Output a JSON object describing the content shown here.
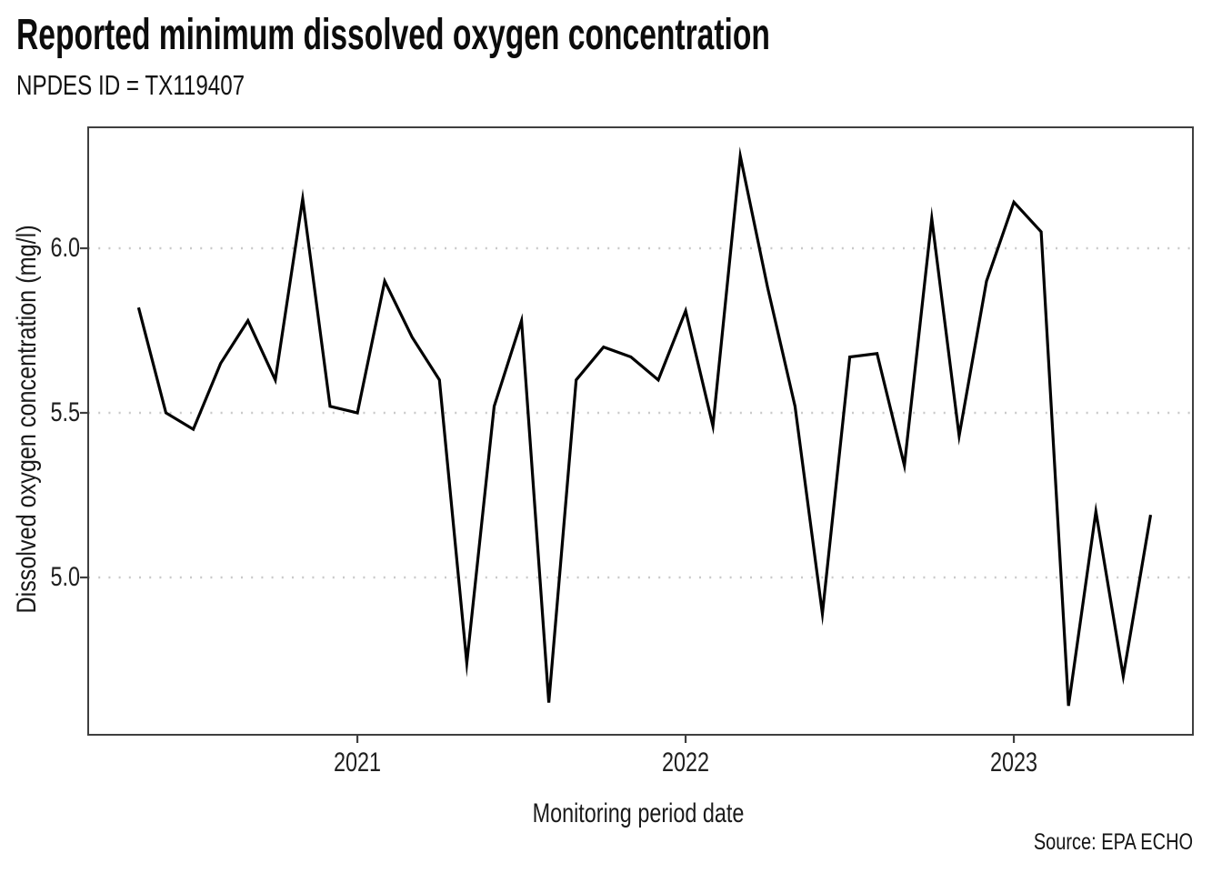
{
  "header": {
    "title": "Reported minimum dissolved oxygen concentration",
    "subtitle": "NPDES ID = TX119407"
  },
  "source_note": "Source: EPA ECHO",
  "chart_data": {
    "type": "line",
    "title": "Reported minimum dissolved oxygen concentration",
    "subtitle": "NPDES ID = TX119407",
    "xlabel": "Monitoring period date",
    "ylabel": "Dissolved oxygen concentration (mg/l)",
    "legend": "none",
    "grid": "horizontal dotted gridlines",
    "line_color": "#000000",
    "grid_color": "#c9c9c9",
    "frame_color": "#3f3f3f",
    "ylim": [
      4.52,
      6.37
    ],
    "y_ticks": [
      {
        "value": 6.0,
        "label": "6.0"
      },
      {
        "value": 5.5,
        "label": "5.5"
      },
      {
        "value": 5.0,
        "label": "5.0"
      }
    ],
    "x_ticks": [
      {
        "month_index": 8,
        "label": "2021"
      },
      {
        "month_index": 20,
        "label": "2022"
      },
      {
        "month_index": 32,
        "label": "2023"
      }
    ],
    "x": [
      "2020-05",
      "2020-06",
      "2020-07",
      "2020-08",
      "2020-09",
      "2020-10",
      "2020-11",
      "2020-12",
      "2021-01",
      "2021-02",
      "2021-03",
      "2021-04",
      "2021-05",
      "2021-06",
      "2021-07",
      "2021-08",
      "2021-09",
      "2021-10",
      "2021-11",
      "2021-12",
      "2022-01",
      "2022-02",
      "2022-03",
      "2022-04",
      "2022-05",
      "2022-06",
      "2022-07",
      "2022-08",
      "2022-09",
      "2022-10",
      "2022-11",
      "2022-12",
      "2023-01",
      "2023-02",
      "2023-03",
      "2023-04",
      "2023-05",
      "2023-06"
    ],
    "values": [
      5.82,
      5.5,
      5.45,
      5.65,
      5.78,
      5.6,
      6.15,
      5.52,
      5.5,
      5.9,
      5.73,
      5.6,
      4.74,
      5.52,
      5.78,
      4.62,
      5.6,
      5.7,
      5.67,
      5.6,
      5.81,
      5.46,
      6.28,
      5.88,
      5.52,
      4.89,
      5.67,
      5.68,
      5.34,
      6.09,
      5.43,
      5.9,
      6.14,
      6.05,
      4.61,
      5.2,
      4.7,
      5.19
    ]
  }
}
